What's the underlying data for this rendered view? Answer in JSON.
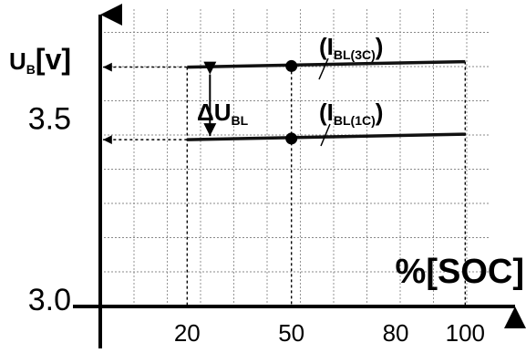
{
  "chart_data": {
    "type": "line",
    "ylabel": {
      "main": "U",
      "sub": "B",
      "unit": "[v]"
    },
    "xlabel": "%[SOC]",
    "x_ticks": [
      20,
      50,
      80,
      100
    ],
    "x_tick_labels": [
      "20",
      "50",
      "80",
      "100"
    ],
    "y_ticks": [
      3.0,
      3.5
    ],
    "y_tick_labels": [
      "3.0",
      "3.5"
    ],
    "xlim": [
      -5,
      107
    ],
    "ylim": [
      2.98,
      3.8
    ],
    "grid": true,
    "series": [
      {
        "name": "(I",
        "sub": "BL(3C)",
        "suffix": ")",
        "x": [
          20,
          100
        ],
        "y": [
          3.64,
          3.655
        ]
      },
      {
        "name": "(I",
        "sub": "BL(1C)",
        "suffix": ")",
        "x": [
          20,
          100
        ],
        "y": [
          3.44,
          3.455
        ]
      }
    ],
    "markers": [
      {
        "x": 50,
        "y": 3.643
      },
      {
        "x": 50,
        "y": 3.443
      }
    ],
    "annotation": {
      "main": "ΔU",
      "sub": "BL"
    }
  }
}
